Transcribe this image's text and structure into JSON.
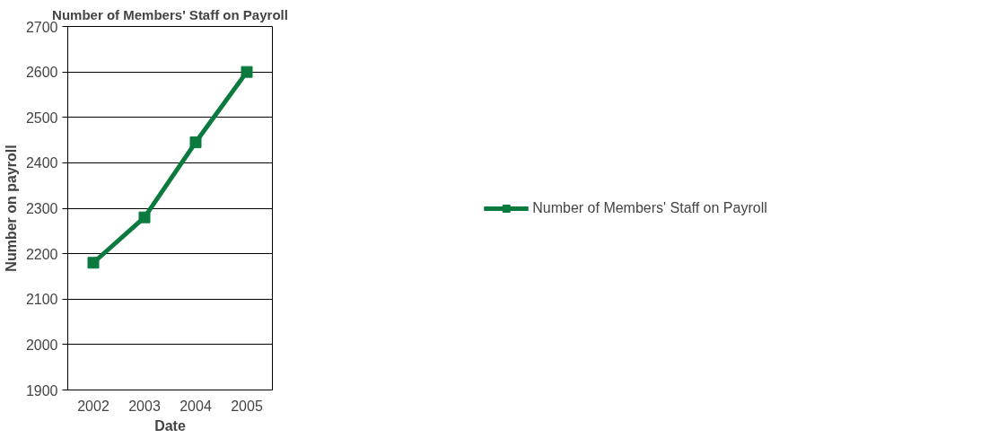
{
  "chart_data": {
    "type": "line",
    "title": "Number of Members' Staff on Payroll",
    "xlabel": "Date",
    "ylabel": "Number on payroll",
    "categories": [
      "2002",
      "2003",
      "2004",
      "2005"
    ],
    "series": [
      {
        "name": "Number of Members' Staff on Payroll",
        "color": "#0b7a3e",
        "values": [
          2180,
          2280,
          2445,
          2600
        ]
      }
    ],
    "ylim": [
      1900,
      2700
    ],
    "yticks": [
      1900,
      2000,
      2100,
      2200,
      2300,
      2400,
      2500,
      2600,
      2700
    ],
    "grid": "y",
    "legend": "right",
    "marker": "square",
    "line_style": "solid"
  }
}
